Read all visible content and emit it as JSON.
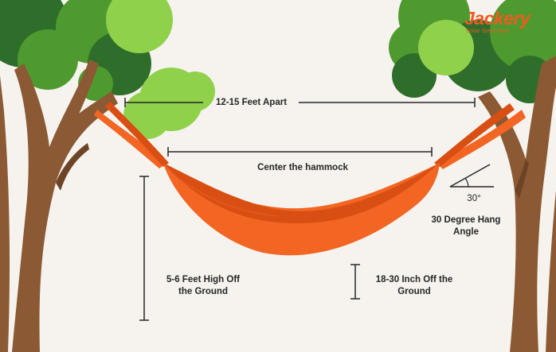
{
  "brand": {
    "name": "Jackery",
    "tagline": "Solar Generator"
  },
  "labels": {
    "apart": "12-15 Feet Apart",
    "center": "Center the hammock",
    "angle_value": "30°",
    "angle_line1": "30 Degree Hang",
    "angle_line2": "Angle",
    "height_line1": "5-6 Feet High Off",
    "height_line2": "the Ground",
    "ground_line1": "18-30 Inch Off the",
    "ground_line2": "Ground"
  },
  "colors": {
    "background": "#f6f3ee",
    "trunk": "#8b5a34",
    "trunk_dark": "#6e4427",
    "leaf_dark": "#2f6e2a",
    "leaf_mid": "#4e9a2f",
    "leaf_light": "#8fd14a",
    "hammock": "#f26522",
    "hammock_dark": "#d94e12",
    "brand": "#f15a22",
    "line": "#262626"
  }
}
